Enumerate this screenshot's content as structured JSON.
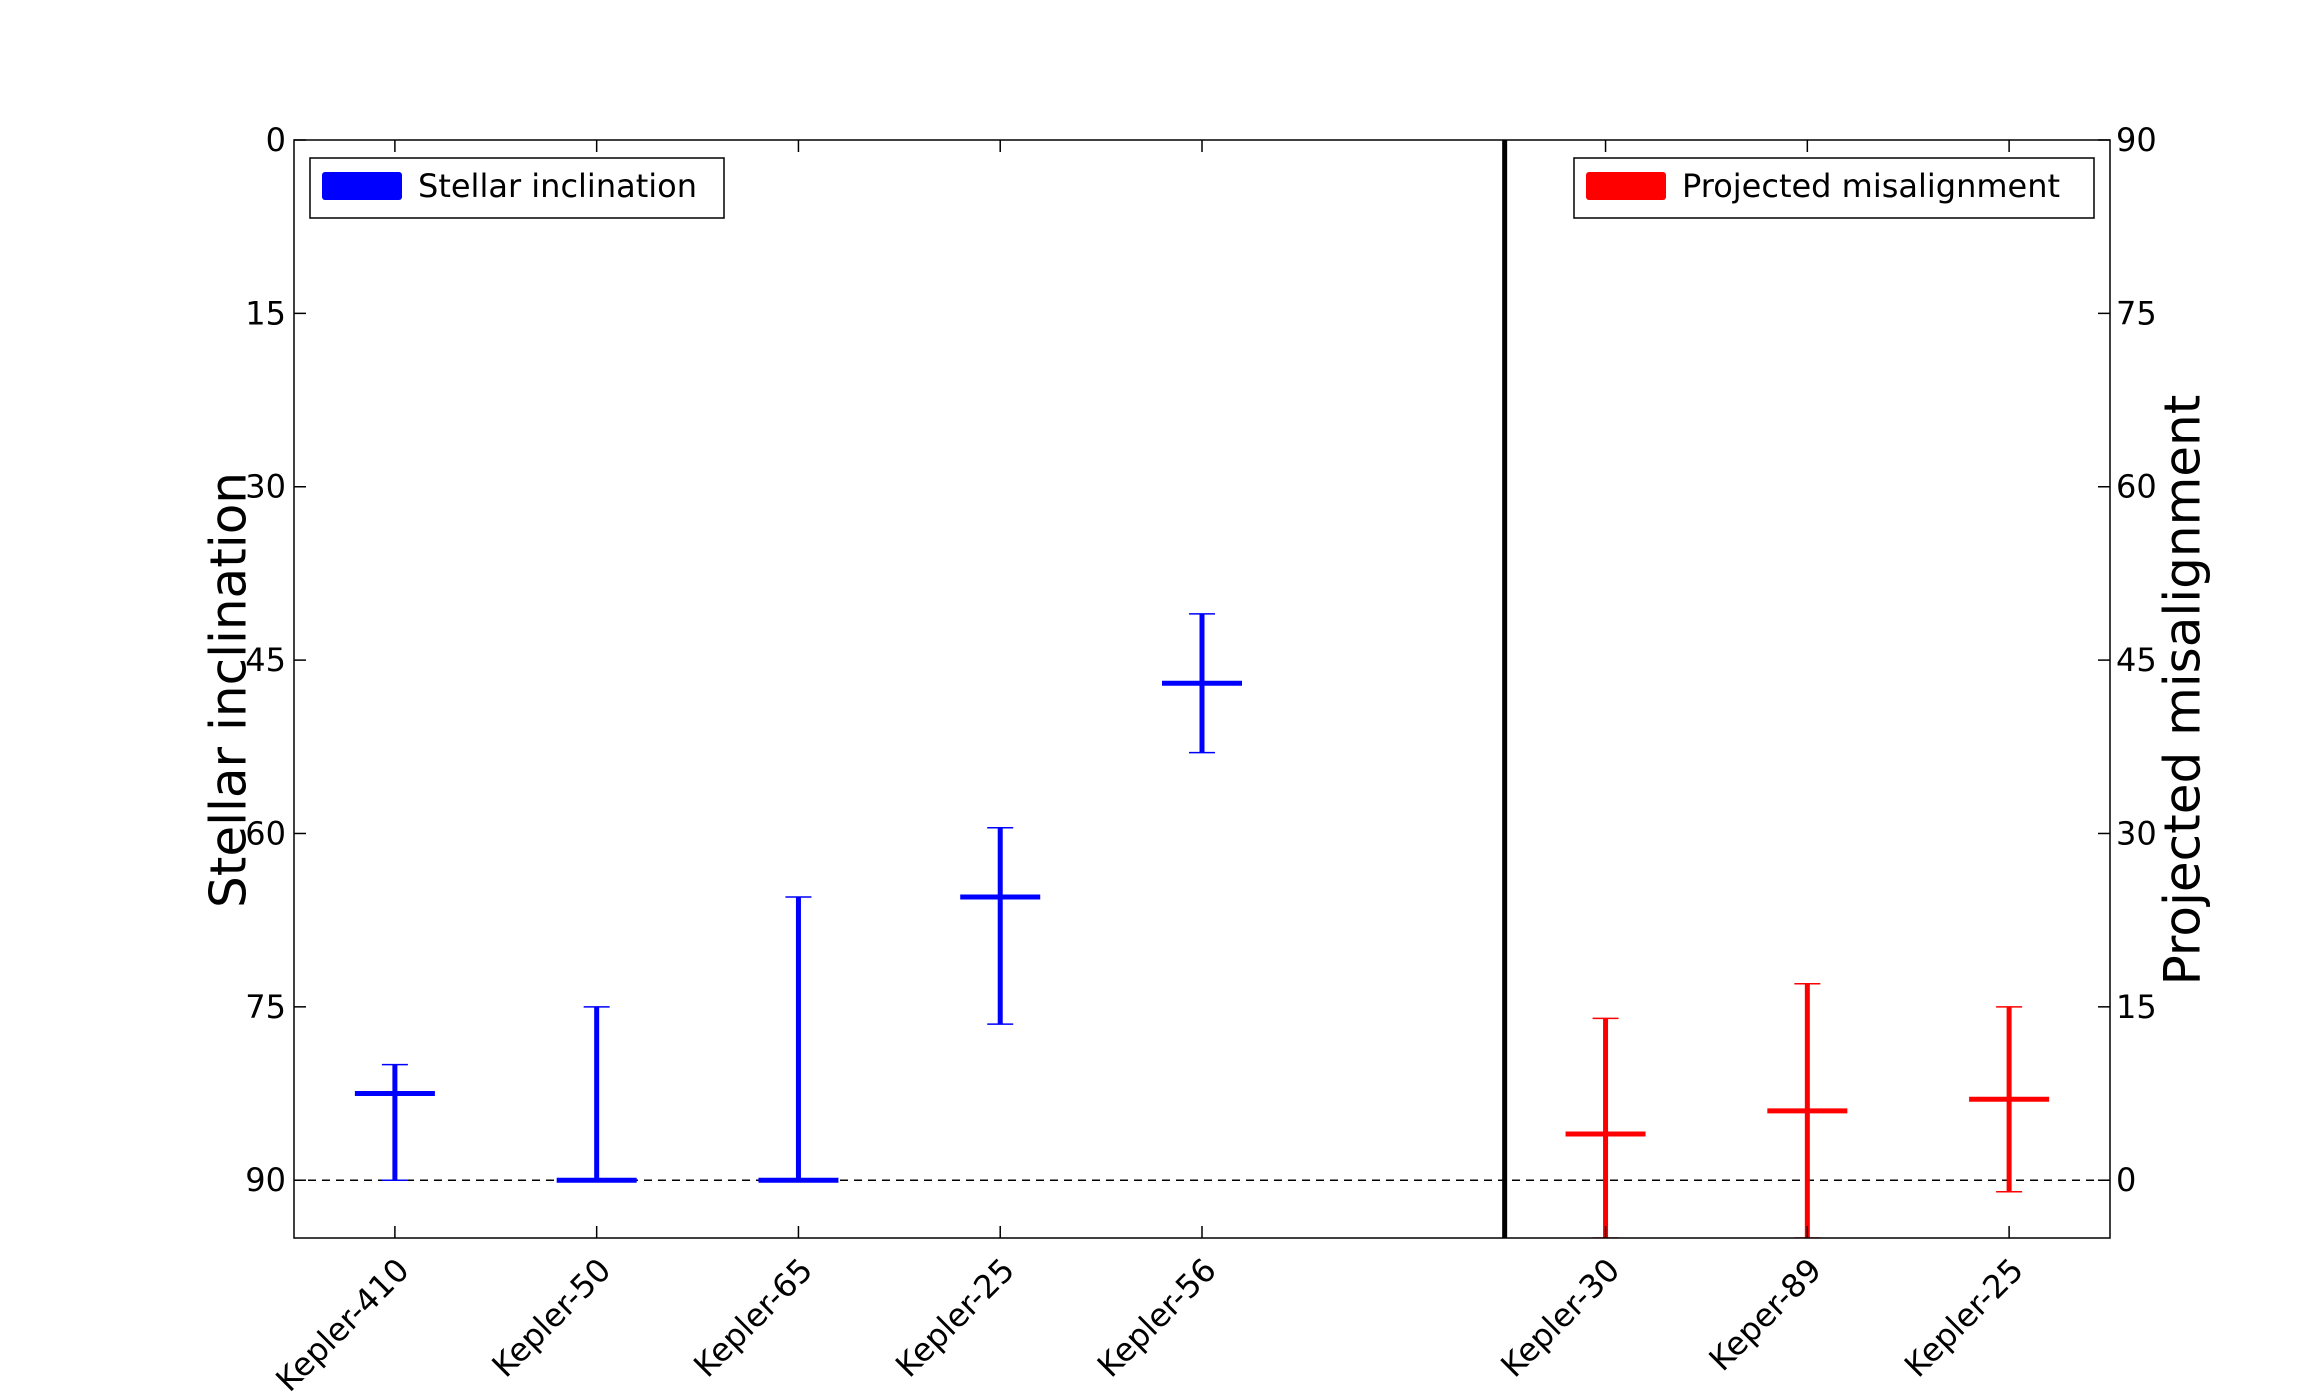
{
  "chart_data": {
    "type": "errorbar",
    "left_axis": {
      "label": "Stellar inclination",
      "ylim": [
        0,
        95
      ],
      "inverted": true,
      "ticks": [
        0,
        15,
        30,
        45,
        60,
        75,
        90
      ],
      "tick_labels": [
        "0",
        "15",
        "30",
        "45",
        "60",
        "75",
        "90"
      ]
    },
    "right_axis": {
      "label": "Projected misalignment",
      "ylim": [
        -5,
        90
      ],
      "ticks": [
        90,
        75,
        60,
        45,
        30,
        15,
        0
      ],
      "tick_labels": [
        "90",
        "75",
        "60",
        "45",
        "30",
        "15",
        "0"
      ]
    },
    "divider_x": 5.5,
    "xlim": [
      -0.5,
      8.5
    ],
    "reference_line": {
      "value": 90,
      "axis": "left",
      "style": "dashed"
    },
    "legends": [
      {
        "label": "Stellar inclination",
        "color": "#0000ff",
        "position": "upper-left"
      },
      {
        "label": "Projected misalignment",
        "color": "#ff0000",
        "position": "upper-right"
      }
    ],
    "series": [
      {
        "name": "Stellar inclination",
        "axis": "left",
        "color": "#0000ff",
        "points": [
          {
            "x": 0,
            "label": "Kepler-410",
            "value": 82.5,
            "low": 80,
            "high": 90
          },
          {
            "x": 1,
            "label": "Kepler-50",
            "value": 90,
            "low": 75,
            "high": 90
          },
          {
            "x": 2,
            "label": "Kepler-65",
            "value": 90,
            "low": 65.5,
            "high": 90
          },
          {
            "x": 3,
            "label": "Kepler-25",
            "value": 65.5,
            "low": 59.5,
            "high": 76.5
          },
          {
            "x": 4,
            "label": "Kepler-56",
            "value": 47,
            "low": 41,
            "high": 53
          }
        ]
      },
      {
        "name": "Projected misalignment",
        "axis": "right",
        "color": "#ff0000",
        "points": [
          {
            "x": 6,
            "label": "Kepler-30",
            "value": 4,
            "low": -5,
            "high": 14
          },
          {
            "x": 7,
            "label": "Keper-89",
            "value": 6,
            "low": -5,
            "high": 17
          },
          {
            "x": 8,
            "label": "Kepler-25",
            "value": 7,
            "low": -1,
            "high": 15
          }
        ]
      }
    ]
  }
}
